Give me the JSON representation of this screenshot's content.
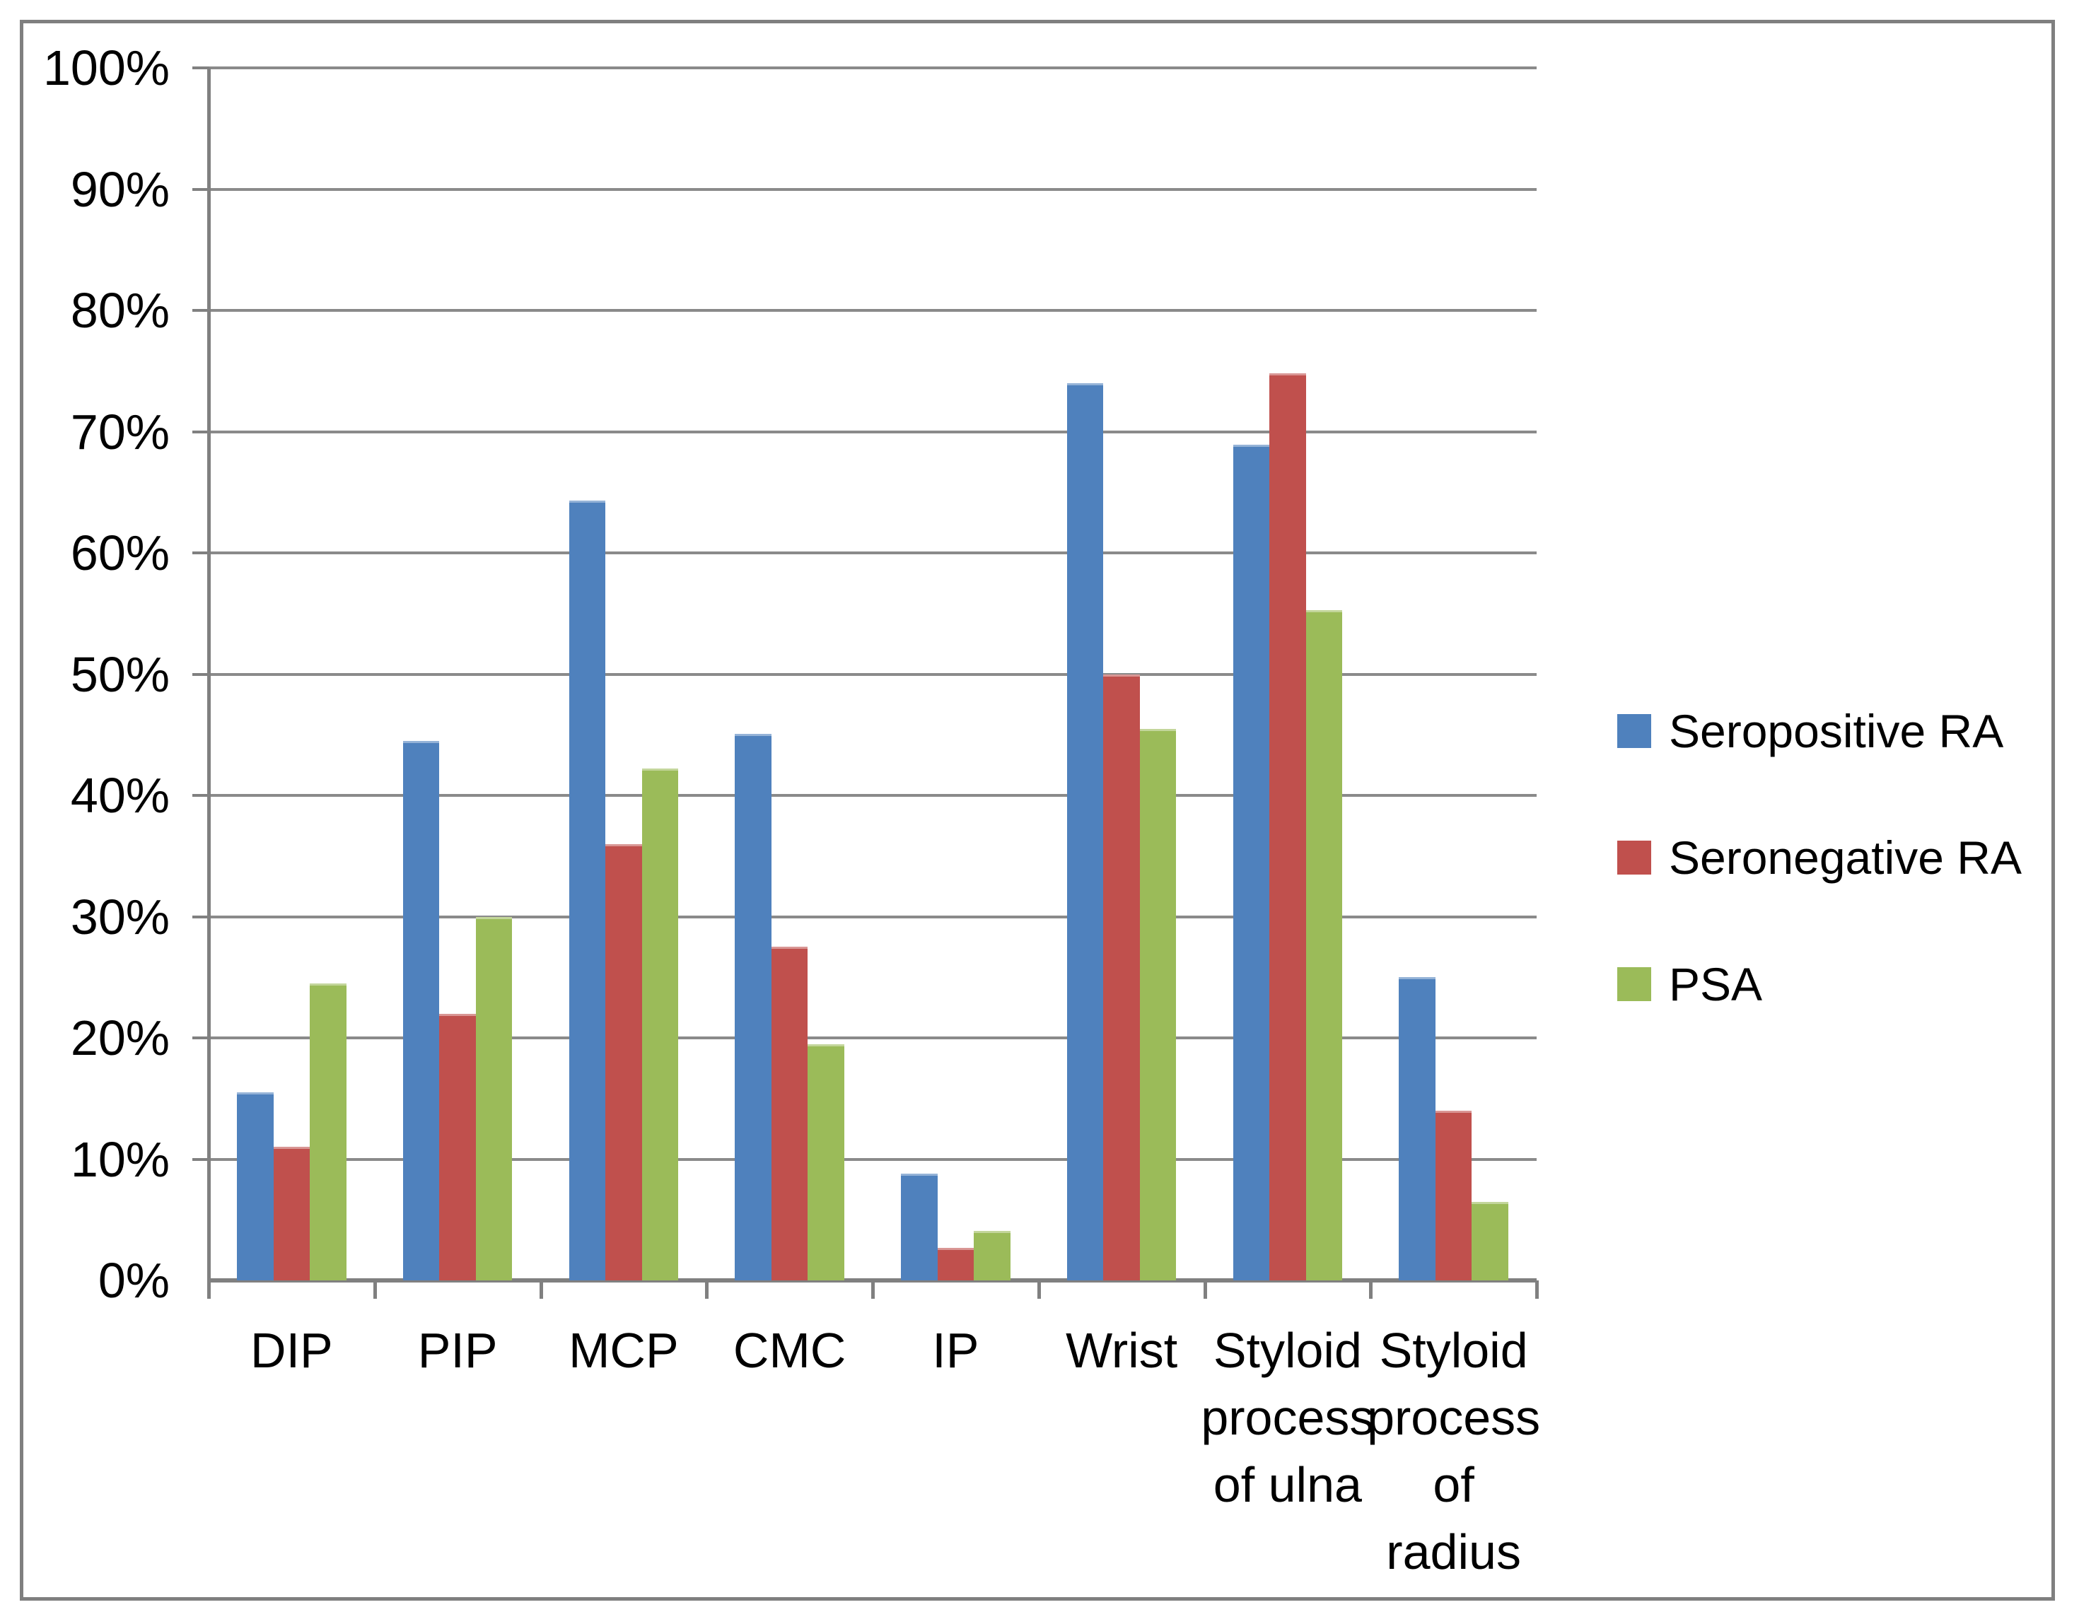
{
  "figure": {
    "background_color": "#FFFFFF",
    "border_color": "#7F7F7F",
    "gridline_color": "#8A8A8A",
    "axis_color": "#808080",
    "text_color": "#000000"
  },
  "chart_data": {
    "type": "bar",
    "title": "",
    "xlabel": "",
    "ylabel": "",
    "ylim": [
      0,
      100
    ],
    "grid": true,
    "legend_position": "right",
    "y_tick_labels": [
      "0%",
      "10%",
      "20%",
      "30%",
      "40%",
      "50%",
      "60%",
      "70%",
      "80%",
      "90%",
      "100%"
    ],
    "categories": [
      {
        "label": "DIP",
        "lines": [
          "DIP"
        ]
      },
      {
        "label": "PIP",
        "lines": [
          "PIP"
        ]
      },
      {
        "label": "MCP",
        "lines": [
          "MCP"
        ]
      },
      {
        "label": "CMC",
        "lines": [
          "CMC"
        ]
      },
      {
        "label": "IP",
        "lines": [
          "IP"
        ]
      },
      {
        "label": "Wrist",
        "lines": [
          "Wrist"
        ]
      },
      {
        "label": "Styloid process of ulna",
        "lines": [
          "Styloid",
          "process",
          "of ulna"
        ]
      },
      {
        "label": "Styloid process of radius",
        "lines": [
          "Styloid",
          "process",
          "of",
          "radius"
        ]
      }
    ],
    "series": [
      {
        "name": "Seropositive RA",
        "color": "#4F81BD",
        "values": [
          15.5,
          44.5,
          64.3,
          45.1,
          8.8,
          74.0,
          68.9,
          25.0
        ]
      },
      {
        "name": "Seronegative RA",
        "color": "#C0504D",
        "values": [
          11.0,
          22.0,
          36.0,
          27.5,
          2.7,
          50.0,
          74.8,
          14.0
        ]
      },
      {
        "name": "PSA",
        "color": "#9BBB59",
        "values": [
          24.5,
          30.0,
          42.2,
          19.5,
          4.1,
          45.5,
          55.3,
          6.5
        ]
      }
    ]
  },
  "legend": {
    "items": [
      {
        "label": "Seropositive RA",
        "color": "#4F81BD"
      },
      {
        "label": "Seronegative RA",
        "color": "#C0504D"
      },
      {
        "label": "PSA",
        "color": "#9BBB59"
      }
    ]
  }
}
